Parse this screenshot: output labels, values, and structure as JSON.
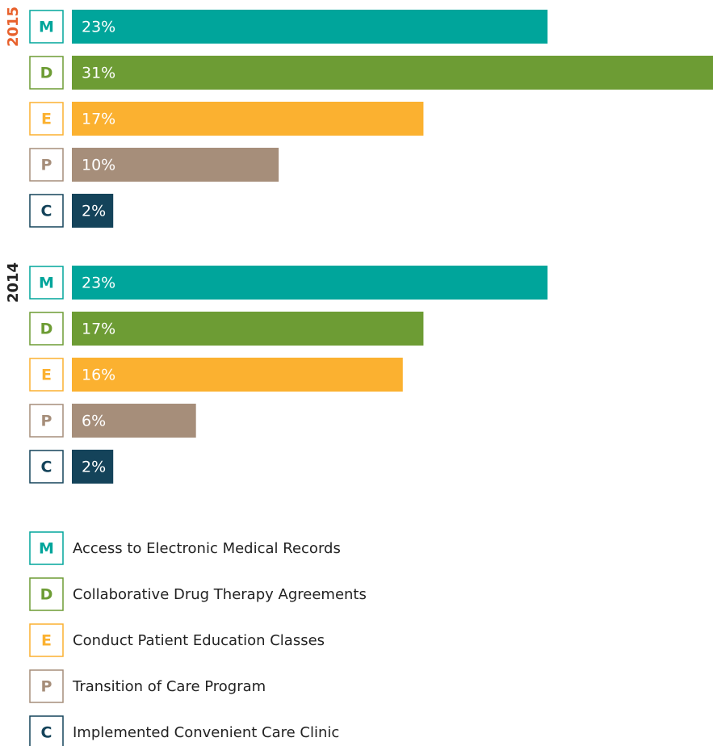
{
  "chart_data": {
    "type": "bar",
    "categories": [
      "M",
      "D",
      "E",
      "P",
      "C"
    ],
    "colors": [
      "#00a59b",
      "#6d9c34",
      "#fbb130",
      "#a68e7a",
      "#14435a"
    ],
    "legend_labels": [
      "Access to Electronic Medical Records",
      "Collaborative Drug Therapy Agreements",
      "Conduct Patient Education Classes",
      "Transition of Care Program",
      "Implemented Convenient Care Clinic"
    ],
    "series": [
      {
        "name": "2015",
        "color": "#e8612c",
        "values": [
          23,
          31,
          17,
          10,
          2
        ],
        "value_labels": [
          "23%",
          "31%",
          "17%",
          "10%",
          "2%"
        ]
      },
      {
        "name": "2014",
        "color": "#222222",
        "values": [
          23,
          17,
          16,
          6,
          2
        ],
        "value_labels": [
          "23%",
          "17%",
          "16%",
          "6%",
          "2%"
        ]
      }
    ],
    "xlim": [
      0,
      31
    ]
  }
}
